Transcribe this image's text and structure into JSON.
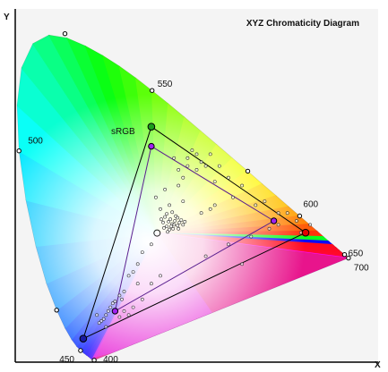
{
  "chart_data": {
    "type": "scatter",
    "title": "XYZ Chromaticity Diagram",
    "xlabel": "X",
    "ylabel": "Y",
    "xlim": [
      0,
      0.8
    ],
    "ylim": [
      0,
      0.9
    ],
    "grid": false,
    "colors": {
      "background": "#f4f4f4",
      "triangle_outer": "#000000",
      "triangle_inner": "#5a1f8f",
      "vertex_inner": "#a020f0",
      "vertex_red": "#e30000",
      "vertex_green": "#1c9c1c",
      "vertex_blue": "#1a1aa0"
    },
    "locus_labels": [
      {
        "text": "400",
        "x": 0.1741,
        "y": 0.005
      },
      {
        "text": "450",
        "x": 0.1566,
        "y": 0.0177
      },
      {
        "text": "500",
        "x": 0.0082,
        "y": 0.5384
      },
      {
        "text": "550",
        "x": 0.3016,
        "y": 0.6923
      },
      {
        "text": "600",
        "x": 0.627,
        "y": 0.3725
      },
      {
        "text": "650",
        "x": 0.726,
        "y": 0.274
      },
      {
        "text": "700",
        "x": 0.7347,
        "y": 0.2653
      }
    ],
    "locus_markers": [
      {
        "x": 0.1741,
        "y": 0.005
      },
      {
        "x": 0.144,
        "y": 0.0297
      },
      {
        "x": 0.0913,
        "y": 0.1327
      },
      {
        "x": 0.0082,
        "y": 0.5384
      },
      {
        "x": 0.1096,
        "y": 0.8369
      },
      {
        "x": 0.3016,
        "y": 0.6923
      },
      {
        "x": 0.5125,
        "y": 0.4866
      },
      {
        "x": 0.627,
        "y": 0.3725
      },
      {
        "x": 0.726,
        "y": 0.274
      },
      {
        "x": 0.7347,
        "y": 0.2653
      }
    ],
    "gamut_labels": [
      {
        "text": "sRGB",
        "x": 0.3,
        "y": 0.6
      }
    ],
    "gamuts": [
      {
        "name": "sRGB",
        "style": "outer",
        "vertices": [
          {
            "x": 0.64,
            "y": 0.33
          },
          {
            "x": 0.3,
            "y": 0.6
          },
          {
            "x": 0.15,
            "y": 0.06
          }
        ]
      },
      {
        "name": "",
        "style": "inner",
        "vertices": [
          {
            "x": 0.57,
            "y": 0.36
          },
          {
            "x": 0.3,
            "y": 0.55
          },
          {
            "x": 0.22,
            "y": 0.13
          }
        ]
      }
    ],
    "samples": [
      {
        "x": 0.338,
        "y": 0.358
      },
      {
        "x": 0.342,
        "y": 0.364
      },
      {
        "x": 0.346,
        "y": 0.352
      },
      {
        "x": 0.334,
        "y": 0.346
      },
      {
        "x": 0.352,
        "y": 0.36
      },
      {
        "x": 0.358,
        "y": 0.348
      },
      {
        "x": 0.33,
        "y": 0.37
      },
      {
        "x": 0.362,
        "y": 0.356
      },
      {
        "x": 0.348,
        "y": 0.34
      },
      {
        "x": 0.326,
        "y": 0.356
      },
      {
        "x": 0.366,
        "y": 0.362
      },
      {
        "x": 0.336,
        "y": 0.332
      },
      {
        "x": 0.354,
        "y": 0.372
      },
      {
        "x": 0.344,
        "y": 0.346
      },
      {
        "x": 0.34,
        "y": 0.338
      },
      {
        "x": 0.35,
        "y": 0.35
      },
      {
        "x": 0.322,
        "y": 0.364
      },
      {
        "x": 0.36,
        "y": 0.34
      },
      {
        "x": 0.37,
        "y": 0.35
      },
      {
        "x": 0.358,
        "y": 0.368
      },
      {
        "x": 0.334,
        "y": 0.378
      },
      {
        "x": 0.346,
        "y": 0.382
      },
      {
        "x": 0.328,
        "y": 0.342
      },
      {
        "x": 0.374,
        "y": 0.358
      },
      {
        "x": 0.38,
        "y": 0.52
      },
      {
        "x": 0.4,
        "y": 0.53
      },
      {
        "x": 0.41,
        "y": 0.51
      },
      {
        "x": 0.38,
        "y": 0.5
      },
      {
        "x": 0.39,
        "y": 0.54
      },
      {
        "x": 0.42,
        "y": 0.5
      },
      {
        "x": 0.4,
        "y": 0.49
      },
      {
        "x": 0.36,
        "y": 0.49
      },
      {
        "x": 0.37,
        "y": 0.47
      },
      {
        "x": 0.43,
        "y": 0.53
      },
      {
        "x": 0.45,
        "y": 0.5
      },
      {
        "x": 0.35,
        "y": 0.52
      },
      {
        "x": 0.36,
        "y": 0.45
      },
      {
        "x": 0.44,
        "y": 0.46
      },
      {
        "x": 0.47,
        "y": 0.47
      },
      {
        "x": 0.5,
        "y": 0.45
      },
      {
        "x": 0.48,
        "y": 0.42
      },
      {
        "x": 0.53,
        "y": 0.4
      },
      {
        "x": 0.55,
        "y": 0.41
      },
      {
        "x": 0.58,
        "y": 0.38
      },
      {
        "x": 0.6,
        "y": 0.38
      },
      {
        "x": 0.62,
        "y": 0.36
      },
      {
        "x": 0.65,
        "y": 0.35
      },
      {
        "x": 0.58,
        "y": 0.35
      },
      {
        "x": 0.56,
        "y": 0.34
      },
      {
        "x": 0.63,
        "y": 0.33
      },
      {
        "x": 0.52,
        "y": 0.32
      },
      {
        "x": 0.47,
        "y": 0.3
      },
      {
        "x": 0.5,
        "y": 0.25
      },
      {
        "x": 0.42,
        "y": 0.27
      },
      {
        "x": 0.3,
        "y": 0.3
      },
      {
        "x": 0.28,
        "y": 0.28
      },
      {
        "x": 0.27,
        "y": 0.25
      },
      {
        "x": 0.26,
        "y": 0.23
      },
      {
        "x": 0.25,
        "y": 0.22
      },
      {
        "x": 0.24,
        "y": 0.18
      },
      {
        "x": 0.23,
        "y": 0.17
      },
      {
        "x": 0.235,
        "y": 0.16
      },
      {
        "x": 0.22,
        "y": 0.155
      },
      {
        "x": 0.215,
        "y": 0.15
      },
      {
        "x": 0.21,
        "y": 0.14
      },
      {
        "x": 0.205,
        "y": 0.13
      },
      {
        "x": 0.2,
        "y": 0.12
      },
      {
        "x": 0.195,
        "y": 0.11
      },
      {
        "x": 0.19,
        "y": 0.105
      },
      {
        "x": 0.185,
        "y": 0.1
      },
      {
        "x": 0.24,
        "y": 0.13
      },
      {
        "x": 0.26,
        "y": 0.14
      },
      {
        "x": 0.23,
        "y": 0.115
      },
      {
        "x": 0.25,
        "y": 0.12
      },
      {
        "x": 0.2,
        "y": 0.09
      },
      {
        "x": 0.18,
        "y": 0.12
      },
      {
        "x": 0.28,
        "y": 0.16
      },
      {
        "x": 0.27,
        "y": 0.2
      },
      {
        "x": 0.3,
        "y": 0.2
      },
      {
        "x": 0.32,
        "y": 0.22
      },
      {
        "x": 0.31,
        "y": 0.42
      },
      {
        "x": 0.33,
        "y": 0.44
      },
      {
        "x": 0.34,
        "y": 0.4
      },
      {
        "x": 0.32,
        "y": 0.39
      },
      {
        "x": 0.41,
        "y": 0.38
      },
      {
        "x": 0.43,
        "y": 0.39
      },
      {
        "x": 0.44,
        "y": 0.4
      },
      {
        "x": 0.37,
        "y": 0.41
      }
    ]
  }
}
